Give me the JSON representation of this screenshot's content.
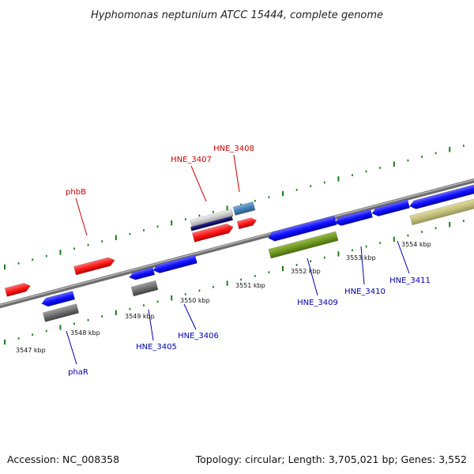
{
  "title": "Hyphomonas neptunium ATCC 15444, complete genome",
  "footer": {
    "accession": "Accession: NC_008358",
    "info": "Topology: circular; Length: 3,705,021 bp; Genes: 3,552"
  },
  "colors": {
    "forward_label": "#cc0000",
    "reverse_label": "#0000aa",
    "tick": "#1a7a1a",
    "backbone": "#888888"
  },
  "ticks": [
    "3547 kbp",
    "3548 kbp",
    "3549 kbp",
    "3550 kbp",
    "3551 kbp",
    "3552 kbp",
    "3553 kbp",
    "3554 kbp"
  ],
  "labels": {
    "forward": [
      "phbB",
      "HNE_3407",
      "HNE_3408"
    ],
    "reverse": [
      "phaR",
      "HNE_3405",
      "HNE_3406",
      "HNE_3409",
      "HNE_3410",
      "HNE_3411"
    ]
  }
}
